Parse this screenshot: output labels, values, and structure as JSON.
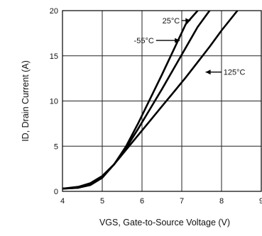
{
  "chart_data": {
    "type": "line",
    "xlabel": "VGS, Gate-to-Source Voltage (V)",
    "ylabel": "ID, Drain Current (A)",
    "xlim": [
      4,
      9
    ],
    "ylim": [
      0,
      20
    ],
    "x_ticks": [
      4,
      5,
      6,
      7,
      8,
      9
    ],
    "y_ticks": [
      0,
      5,
      10,
      15,
      20
    ],
    "grid": true,
    "series": [
      {
        "name": "-55°C",
        "x": [
          4.0,
          4.4,
          4.7,
          5.0,
          5.3,
          5.6,
          5.9,
          6.2,
          6.5,
          6.8,
          7.1,
          7.4
        ],
        "y": [
          0.3,
          0.4,
          0.7,
          1.5,
          3.0,
          5.0,
          7.5,
          10.2,
          12.9,
          15.7,
          18.5,
          20.0
        ]
      },
      {
        "name": "25°C",
        "x": [
          4.0,
          4.4,
          4.7,
          5.0,
          5.3,
          5.6,
          5.9,
          6.2,
          6.5,
          6.8,
          7.1,
          7.4,
          7.7
        ],
        "y": [
          0.3,
          0.4,
          0.8,
          1.6,
          3.0,
          4.8,
          6.9,
          9.1,
          11.3,
          13.6,
          15.9,
          18.2,
          20.0
        ]
      },
      {
        "name": "125°C",
        "x": [
          4.0,
          4.4,
          4.7,
          5.0,
          5.3,
          5.6,
          5.9,
          6.2,
          6.5,
          6.8,
          7.1,
          7.4,
          7.7,
          8.0,
          8.4
        ],
        "y": [
          0.3,
          0.5,
          0.9,
          1.7,
          3.0,
          4.6,
          6.2,
          7.8,
          9.4,
          11.0,
          12.6,
          14.3,
          16.0,
          17.8,
          20.0
        ]
      }
    ],
    "annotations": [
      {
        "text": "25°C",
        "series": 1,
        "x": 6.95,
        "y": 18.9,
        "arrow_to_x": 7.22,
        "arrow_to_y": 18.9
      },
      {
        "text": "-55°C",
        "series": 0,
        "x": 6.3,
        "y": 16.7,
        "arrow_to_x": 6.95,
        "arrow_to_y": 16.7
      },
      {
        "text": "125°C",
        "series": 2,
        "x": 8.05,
        "y": 13.2,
        "arrow_to_x": 7.6,
        "arrow_to_y": 13.2
      }
    ]
  }
}
